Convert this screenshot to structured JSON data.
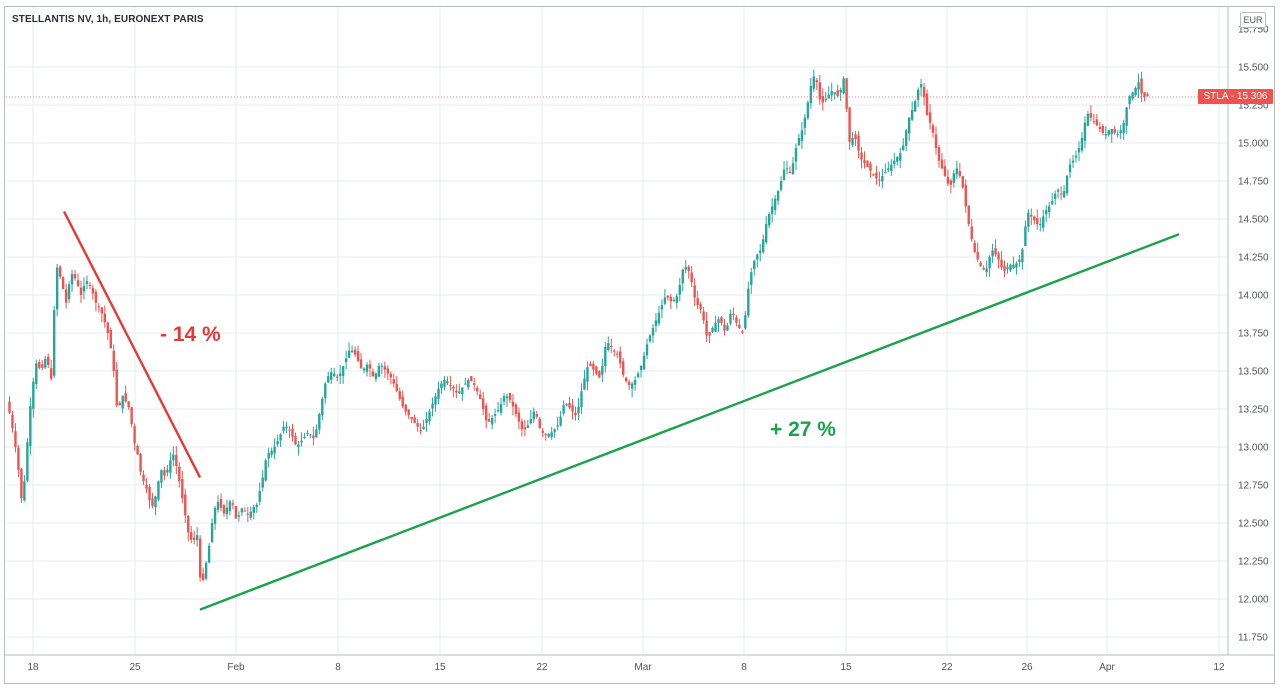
{
  "header": {
    "title": "STELLANTIS NV, 1h, EURONEXT PARIS",
    "currency": "EUR"
  },
  "price_badge": "STLA - 15.306",
  "annotations": {
    "decline": "- 14 %",
    "rise": "+ 27 %"
  },
  "colors": {
    "up": "#26a69a",
    "down": "#ef5350",
    "trend_down": "#e53935",
    "trend_up": "#1aa34a",
    "grid": "#e6ecf5"
  },
  "chart_data": {
    "type": "candlestick",
    "title": "STELLANTIS NV, 1h, EURONEXT PARIS",
    "symbol": "STLA",
    "last_price": 15.306,
    "ylim": [
      11.7,
      15.75
    ],
    "yticks": [
      "11.750",
      "12.000",
      "12.250",
      "12.500",
      "12.750",
      "13.000",
      "13.250",
      "13.500",
      "13.750",
      "14.000",
      "14.250",
      "14.500",
      "14.750",
      "15.000",
      "15.250",
      "15.500"
    ],
    "xticks": [
      "18",
      "25",
      "Feb",
      "8",
      "15",
      "22",
      "Mar",
      "8",
      "15",
      "22",
      "26",
      "Apr",
      "12"
    ],
    "grid": true,
    "close_path": [
      [
        0,
        13.3
      ],
      [
        4,
        13.2
      ],
      [
        8,
        13.05
      ],
      [
        12,
        12.85
      ],
      [
        16,
        12.6
      ],
      [
        20,
        12.95
      ],
      [
        25,
        13.35
      ],
      [
        30,
        13.55
      ],
      [
        35,
        13.5
      ],
      [
        40,
        13.6
      ],
      [
        45,
        13.45
      ],
      [
        50,
        14.2
      ],
      [
        55,
        14.1
      ],
      [
        60,
        13.95
      ],
      [
        65,
        14.15
      ],
      [
        70,
        14.1
      ],
      [
        75,
        14.0
      ],
      [
        80,
        14.1
      ],
      [
        85,
        14.05
      ],
      [
        90,
        13.95
      ],
      [
        95,
        13.9
      ],
      [
        100,
        13.8
      ],
      [
        104,
        13.7
      ],
      [
        108,
        13.5
      ],
      [
        112,
        13.2
      ],
      [
        116,
        13.35
      ],
      [
        120,
        13.3
      ],
      [
        124,
        13.25
      ],
      [
        128,
        13.05
      ],
      [
        132,
        12.95
      ],
      [
        136,
        12.8
      ],
      [
        140,
        12.75
      ],
      [
        144,
        12.65
      ],
      [
        148,
        12.6
      ],
      [
        152,
        12.75
      ],
      [
        156,
        12.85
      ],
      [
        160,
        12.8
      ],
      [
        164,
        12.9
      ],
      [
        168,
        12.95
      ],
      [
        172,
        12.85
      ],
      [
        176,
        12.7
      ],
      [
        180,
        12.55
      ],
      [
        184,
        12.4
      ],
      [
        188,
        12.38
      ],
      [
        192,
        12.42
      ],
      [
        196,
        12.05
      ],
      [
        200,
        12.2
      ],
      [
        204,
        12.35
      ],
      [
        208,
        12.55
      ],
      [
        212,
        12.65
      ],
      [
        216,
        12.6
      ],
      [
        220,
        12.55
      ],
      [
        224,
        12.65
      ],
      [
        228,
        12.62
      ],
      [
        232,
        12.5
      ],
      [
        236,
        12.6
      ],
      [
        240,
        12.58
      ],
      [
        244,
        12.55
      ],
      [
        248,
        12.6
      ],
      [
        252,
        12.62
      ],
      [
        258,
        12.8
      ],
      [
        262,
        12.95
      ],
      [
        268,
        12.98
      ],
      [
        274,
        13.05
      ],
      [
        280,
        13.15
      ],
      [
        286,
        13.1
      ],
      [
        292,
        13.0
      ],
      [
        298,
        13.05
      ],
      [
        304,
        13.1
      ],
      [
        310,
        13.05
      ],
      [
        316,
        13.25
      ],
      [
        322,
        13.45
      ],
      [
        328,
        13.5
      ],
      [
        334,
        13.45
      ],
      [
        340,
        13.55
      ],
      [
        346,
        13.65
      ],
      [
        352,
        13.6
      ],
      [
        358,
        13.5
      ],
      [
        364,
        13.55
      ],
      [
        370,
        13.45
      ],
      [
        376,
        13.55
      ],
      [
        382,
        13.5
      ],
      [
        388,
        13.45
      ],
      [
        394,
        13.35
      ],
      [
        400,
        13.25
      ],
      [
        406,
        13.2
      ],
      [
        412,
        13.15
      ],
      [
        418,
        13.1
      ],
      [
        424,
        13.2
      ],
      [
        430,
        13.3
      ],
      [
        436,
        13.4
      ],
      [
        442,
        13.45
      ],
      [
        448,
        13.4
      ],
      [
        454,
        13.35
      ],
      [
        460,
        13.4
      ],
      [
        466,
        13.45
      ],
      [
        472,
        13.4
      ],
      [
        478,
        13.3
      ],
      [
        484,
        13.15
      ],
      [
        490,
        13.2
      ],
      [
        496,
        13.25
      ],
      [
        502,
        13.35
      ],
      [
        508,
        13.3
      ],
      [
        514,
        13.2
      ],
      [
        520,
        13.1
      ],
      [
        526,
        13.15
      ],
      [
        532,
        13.25
      ],
      [
        538,
        13.1
      ],
      [
        544,
        13.08
      ],
      [
        550,
        13.1
      ],
      [
        556,
        13.15
      ],
      [
        562,
        13.3
      ],
      [
        568,
        13.25
      ],
      [
        574,
        13.2
      ],
      [
        580,
        13.4
      ],
      [
        586,
        13.55
      ],
      [
        592,
        13.5
      ],
      [
        598,
        13.45
      ],
      [
        604,
        13.7
      ],
      [
        610,
        13.65
      ],
      [
        616,
        13.6
      ],
      [
        622,
        13.45
      ],
      [
        628,
        13.4
      ],
      [
        634,
        13.45
      ],
      [
        640,
        13.55
      ],
      [
        646,
        13.7
      ],
      [
        652,
        13.8
      ],
      [
        658,
        13.9
      ],
      [
        664,
        14.0
      ],
      [
        670,
        13.95
      ],
      [
        676,
        14.0
      ],
      [
        682,
        14.2
      ],
      [
        688,
        14.15
      ],
      [
        694,
        13.95
      ],
      [
        700,
        13.9
      ],
      [
        706,
        13.7
      ],
      [
        712,
        13.8
      ],
      [
        718,
        13.85
      ],
      [
        724,
        13.75
      ],
      [
        730,
        13.9
      ],
      [
        736,
        13.8
      ],
      [
        742,
        13.75
      ],
      [
        748,
        14.1
      ],
      [
        754,
        14.25
      ],
      [
        760,
        14.3
      ],
      [
        766,
        14.5
      ],
      [
        772,
        14.6
      ],
      [
        778,
        14.7
      ],
      [
        784,
        14.85
      ],
      [
        790,
        14.8
      ],
      [
        796,
        15.0
      ],
      [
        802,
        15.1
      ],
      [
        808,
        15.3
      ],
      [
        812,
        15.45
      ],
      [
        816,
        15.4
      ],
      [
        820,
        15.25
      ],
      [
        826,
        15.3
      ],
      [
        832,
        15.35
      ],
      [
        838,
        15.3
      ],
      [
        844,
        15.45
      ],
      [
        848,
        15.0
      ],
      [
        854,
        15.05
      ],
      [
        860,
        14.9
      ],
      [
        866,
        14.85
      ],
      [
        872,
        14.8
      ],
      [
        878,
        14.75
      ],
      [
        884,
        14.8
      ],
      [
        890,
        14.85
      ],
      [
        896,
        14.9
      ],
      [
        902,
        14.95
      ],
      [
        908,
        15.15
      ],
      [
        914,
        15.25
      ],
      [
        918,
        15.35
      ],
      [
        922,
        15.4
      ],
      [
        926,
        15.2
      ],
      [
        932,
        15.1
      ],
      [
        938,
        14.9
      ],
      [
        944,
        14.8
      ],
      [
        950,
        14.7
      ],
      [
        956,
        14.85
      ],
      [
        962,
        14.75
      ],
      [
        968,
        14.5
      ],
      [
        974,
        14.3
      ],
      [
        980,
        14.2
      ],
      [
        986,
        14.15
      ],
      [
        992,
        14.3
      ],
      [
        998,
        14.25
      ],
      [
        1004,
        14.15
      ],
      [
        1010,
        14.2
      ],
      [
        1016,
        14.2
      ],
      [
        1022,
        14.25
      ],
      [
        1028,
        14.55
      ],
      [
        1034,
        14.5
      ],
      [
        1040,
        14.45
      ],
      [
        1046,
        14.55
      ],
      [
        1052,
        14.6
      ],
      [
        1058,
        14.7
      ],
      [
        1064,
        14.65
      ],
      [
        1070,
        14.85
      ],
      [
        1076,
        14.9
      ],
      [
        1082,
        15.0
      ],
      [
        1088,
        15.2
      ],
      [
        1094,
        15.15
      ],
      [
        1100,
        15.1
      ],
      [
        1106,
        15.05
      ],
      [
        1112,
        15.1
      ],
      [
        1118,
        15.05
      ],
      [
        1124,
        15.1
      ],
      [
        1130,
        15.3
      ],
      [
        1136,
        15.35
      ],
      [
        1140,
        15.4
      ],
      [
        1144,
        15.3
      ],
      [
        1148,
        15.31
      ]
    ],
    "trendlines": [
      {
        "from": {
          "x": "Jan 20",
          "y": 14.55
        },
        "to": {
          "x": "Jan 29",
          "y": 12.8
        },
        "label": "- 14 %"
      },
      {
        "from": {
          "x": "Jan 29",
          "y": 11.93
        },
        "to": {
          "x": "Apr 8",
          "y": 14.4
        },
        "label": "+ 27 %"
      }
    ]
  }
}
